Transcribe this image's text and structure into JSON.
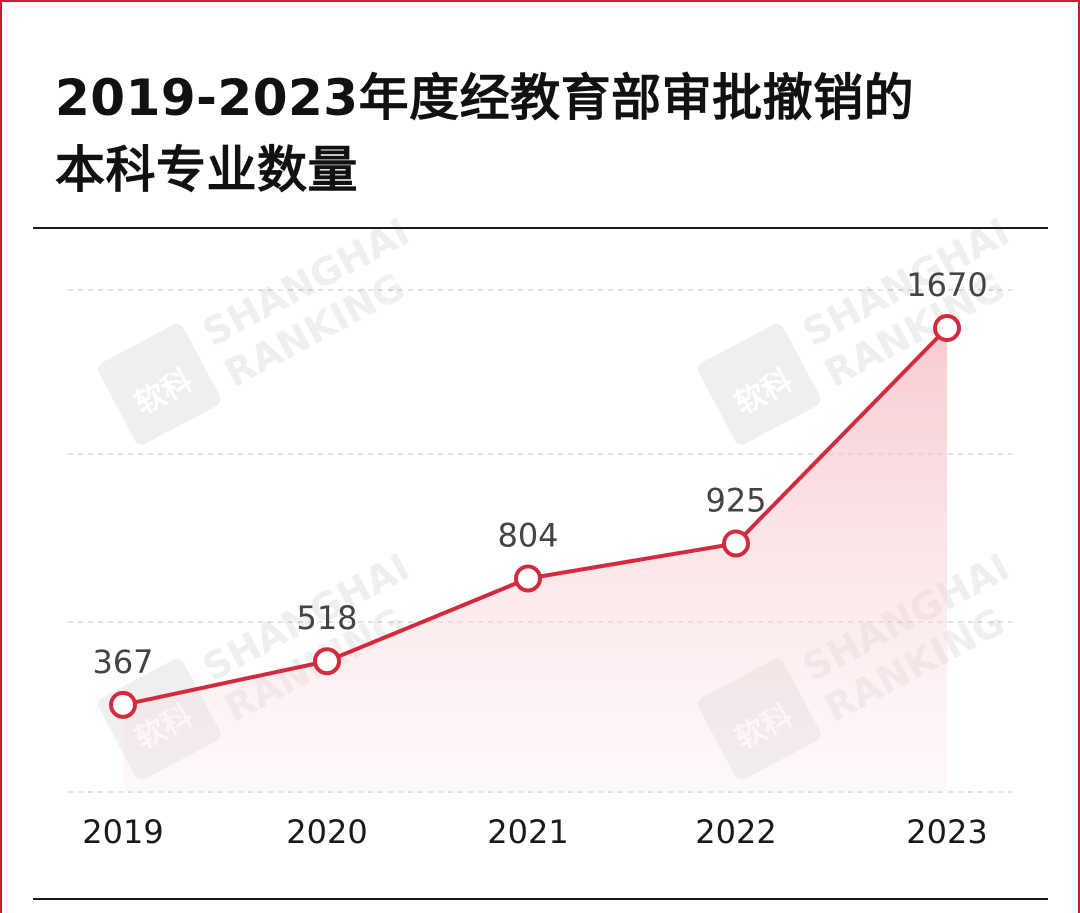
{
  "title_line1": "2019-2023年度经教育部审批撤销的",
  "title_line2": "本科专业数量",
  "watermark_text": [
    "SHANGHAI",
    "RANKING"
  ],
  "watermark_logo_text": "软科",
  "colors": {
    "line": "#d42a3e",
    "point_fill": "#ffffff",
    "area_fill": "#f6c9cf",
    "grid": "#d8d8d8",
    "label": "#444444",
    "frame": "#c8202f"
  },
  "chart_data": {
    "type": "line",
    "categories": [
      "2019",
      "2020",
      "2021",
      "2022",
      "2023"
    ],
    "values": [
      367,
      518,
      804,
      925,
      1670
    ],
    "data_labels": [
      "367",
      "518",
      "804",
      "925",
      "1670"
    ],
    "title": "2019-2023年度经教育部审批撤销的本科专业数量",
    "xlabel": "",
    "ylabel": "",
    "ylim": [
      0,
      1800
    ],
    "grid": true,
    "legend": "none"
  }
}
